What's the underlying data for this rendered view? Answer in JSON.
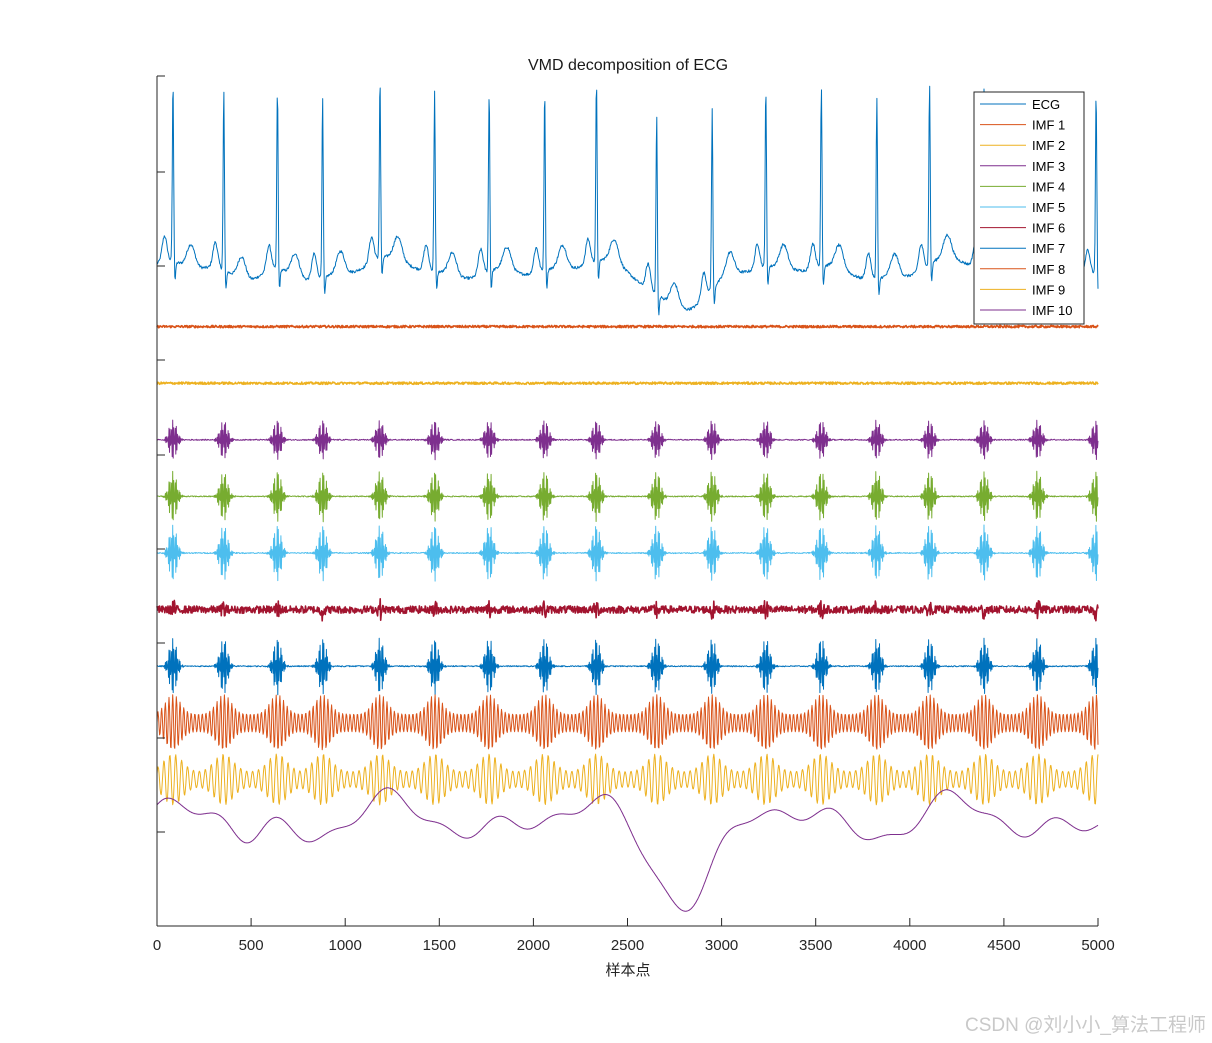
{
  "chart_data": {
    "type": "line",
    "title": "VMD decomposition of ECG",
    "xlabel": "样本点",
    "ylabel": "",
    "xlim": [
      0,
      5000
    ],
    "x_ticks": [
      0,
      500,
      1000,
      1500,
      2000,
      2500,
      3000,
      3500,
      4000,
      4500,
      5000
    ],
    "x_tick_labels": [
      "0",
      "500",
      "1000",
      "1500",
      "2000",
      "2500",
      "3000",
      "3500",
      "4000",
      "4500",
      "5000"
    ],
    "beat_positions": [
      85,
      355,
      640,
      880,
      1185,
      1475,
      1765,
      2060,
      2335,
      2655,
      2950,
      3235,
      3530,
      3825,
      4105,
      4395,
      4680,
      4990
    ],
    "series": [
      {
        "name": "ECG",
        "color": "#0072BD",
        "baseline": 0.0,
        "kind": "ecg",
        "amplitude": 1.0
      },
      {
        "name": "IMF 1",
        "color": "#D95319",
        "baseline": -1.0,
        "kind": "noise",
        "amplitude": 0.02
      },
      {
        "name": "IMF 2",
        "color": "#EDB120",
        "baseline": -2.0,
        "kind": "noise",
        "amplitude": 0.02
      },
      {
        "name": "IMF 3",
        "color": "#7E2F8E",
        "baseline": -3.0,
        "kind": "bursts",
        "amplitude": 0.35
      },
      {
        "name": "IMF 4",
        "color": "#77AC30",
        "baseline": -4.0,
        "kind": "bursts",
        "amplitude": 0.45
      },
      {
        "name": "IMF 5",
        "color": "#4DBEEE",
        "baseline": -5.0,
        "kind": "bursts",
        "amplitude": 0.5
      },
      {
        "name": "IMF 6",
        "color": "#A2142F",
        "baseline": -6.0,
        "kind": "noise-bursts",
        "amplitude": 0.12
      },
      {
        "name": "IMF 7",
        "color": "#0072BD",
        "baseline": -7.0,
        "kind": "bursts",
        "amplitude": 0.5
      },
      {
        "name": "IMF 8",
        "color": "#D95319",
        "baseline": -8.0,
        "kind": "wavy",
        "amplitude": 0.45
      },
      {
        "name": "IMF 9",
        "color": "#EDB120",
        "baseline": -9.0,
        "kind": "wavy-slow",
        "amplitude": 0.45
      },
      {
        "name": "IMF 10",
        "color": "#7E2F8E",
        "baseline": -10.0,
        "kind": "drift",
        "amplitude": 0.9
      }
    ],
    "legend_location": "top-right",
    "grid": false
  },
  "watermark": "CSDN @刘小小_算法工程师"
}
